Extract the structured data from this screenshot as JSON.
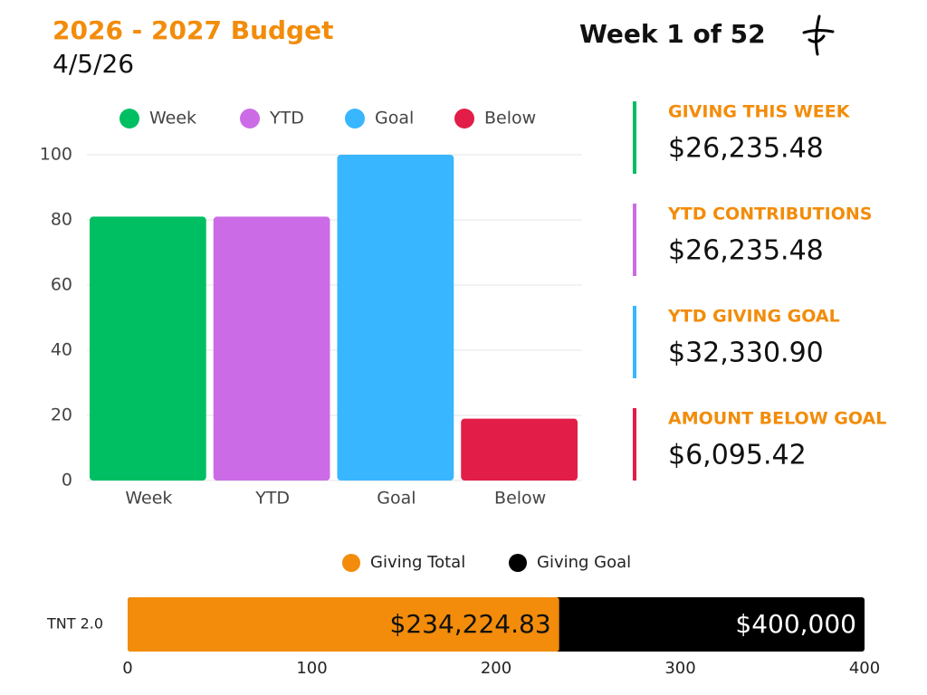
{
  "header": {
    "title": "2026 - 2027 Budget",
    "date": "4/5/26",
    "week": "Week 1 of 52"
  },
  "stats": [
    {
      "label": "GIVING THIS WEEK",
      "value": "$26,235.48",
      "color": "#00bf63"
    },
    {
      "label": "YTD CONTRIBUTIONS",
      "value": "$26,235.48",
      "color": "#cb6ce6"
    },
    {
      "label": "YTD GIVING GOAL",
      "value": "$32,330.90",
      "color": "#38b6ff"
    },
    {
      "label": "AMOUNT BELOW GOAL",
      "value": "$6,095.42",
      "color": "#e11d48"
    }
  ],
  "chart_data": [
    {
      "type": "bar",
      "categories": [
        "Week",
        "YTD",
        "Goal",
        "Below"
      ],
      "values": [
        81,
        81,
        100,
        19
      ],
      "colors": [
        "#00bf63",
        "#cb6ce6",
        "#38b6ff",
        "#e11d48"
      ],
      "ylim": [
        0,
        100
      ],
      "yticks": [
        0,
        20,
        40,
        60,
        80,
        100
      ],
      "grid": true,
      "legend": "top"
    },
    {
      "type": "barh",
      "categories": [
        "TNT 2.0"
      ],
      "series": [
        {
          "name": "Giving Total",
          "color": "#f28c0a",
          "values": [
            234.22483
          ],
          "value_labels": [
            "$234,224.83"
          ]
        },
        {
          "name": "Giving Goal",
          "color": "#000000",
          "values": [
            400
          ],
          "value_labels": [
            "$400,000"
          ]
        }
      ],
      "xlim": [
        0,
        400
      ],
      "xticks": [
        0,
        100,
        200,
        300,
        400
      ],
      "legend": "top"
    }
  ]
}
